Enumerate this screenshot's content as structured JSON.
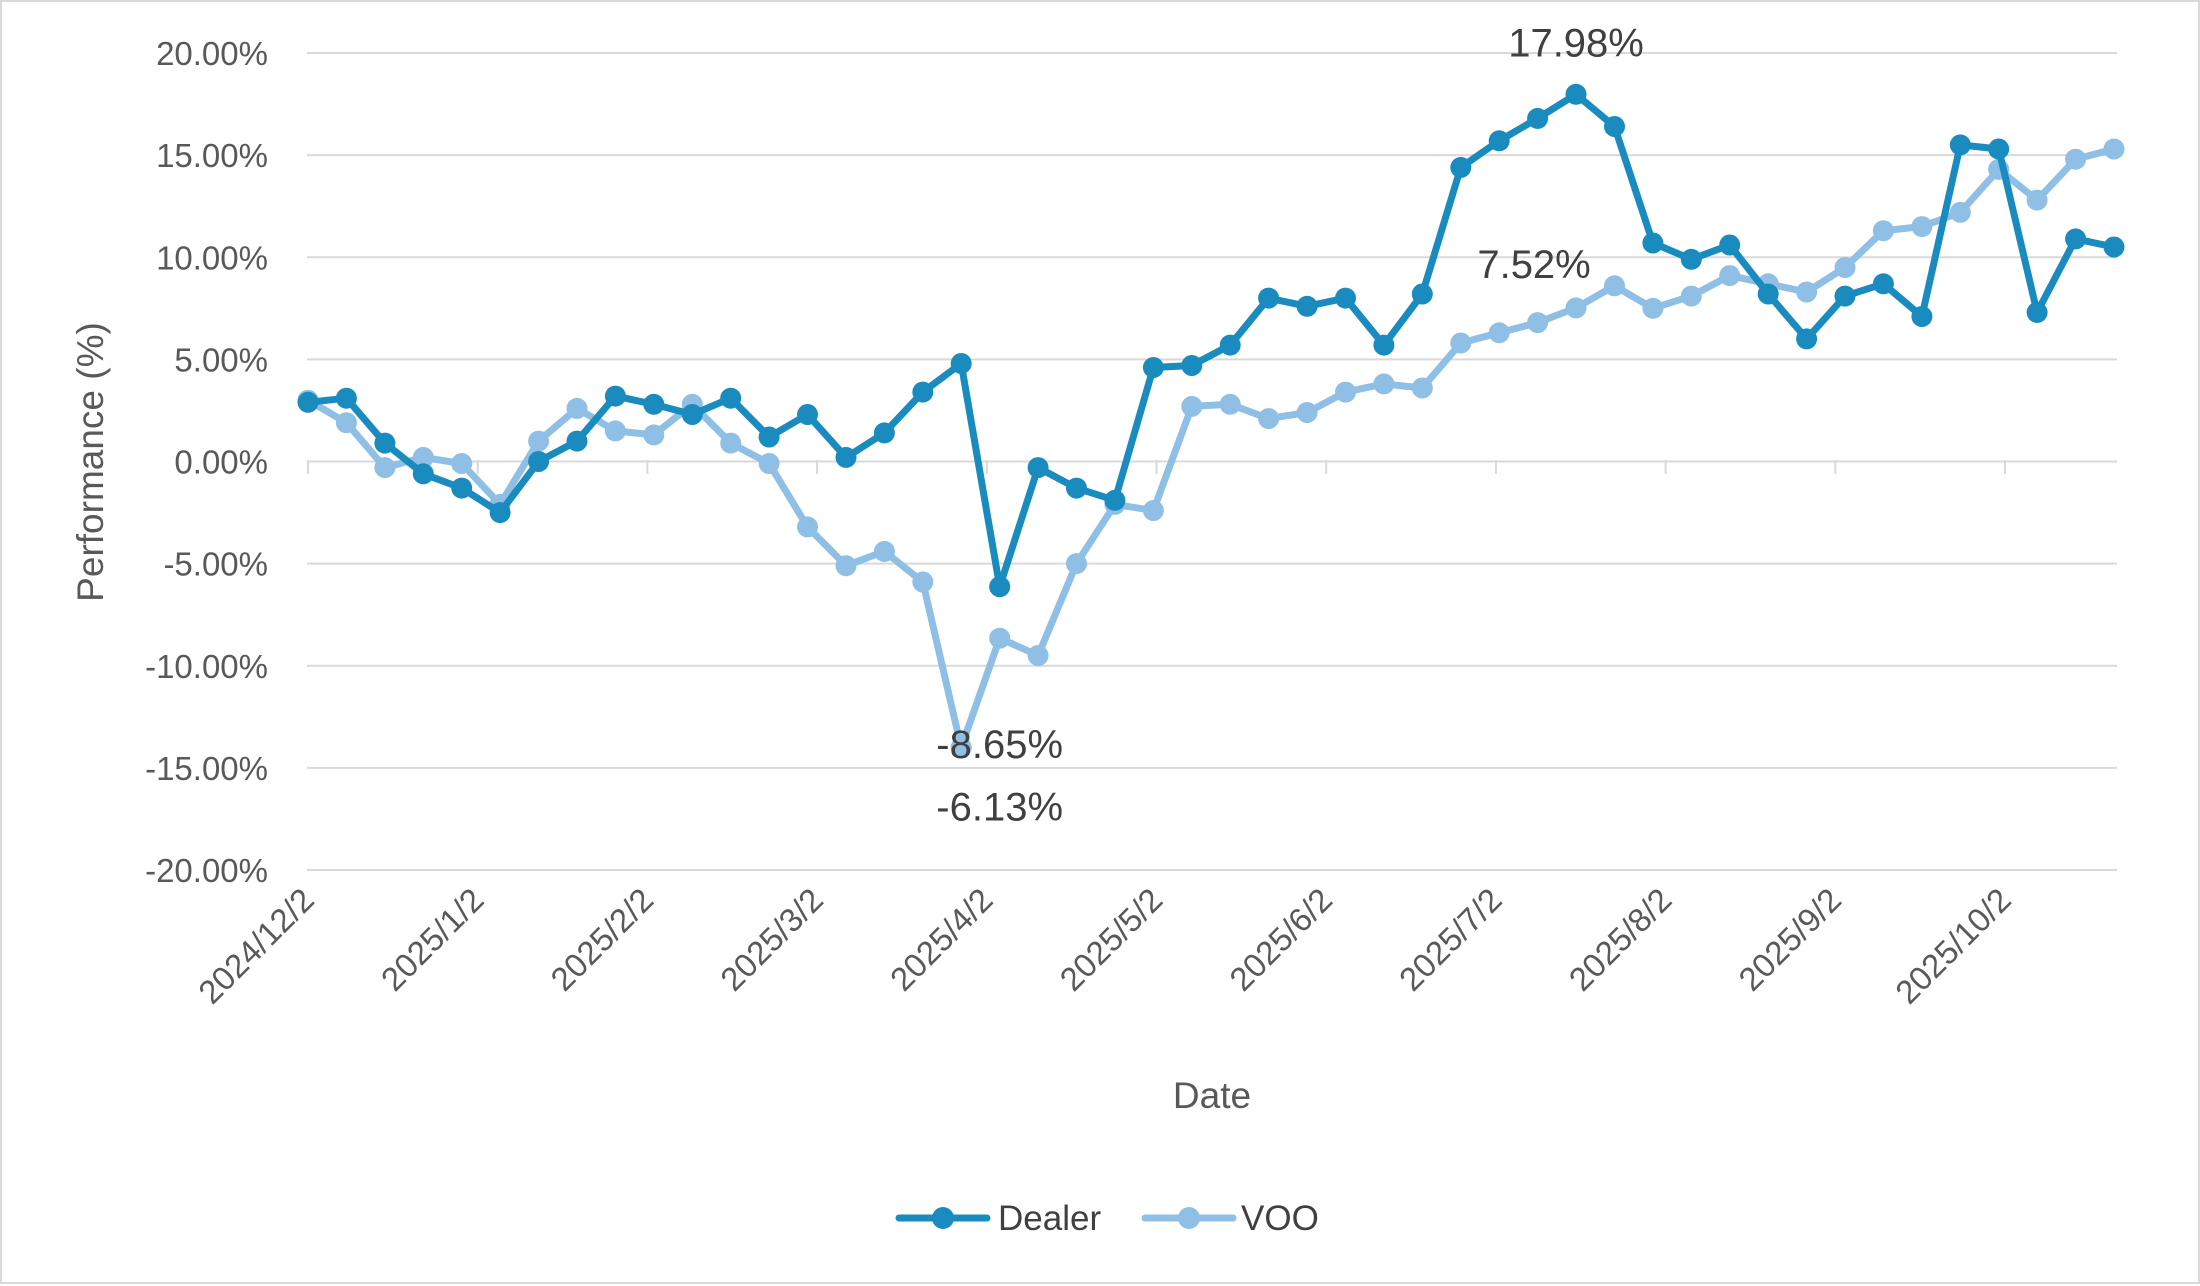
{
  "chart_data": {
    "type": "line",
    "title": "",
    "xlabel": "Date",
    "ylabel": "Performance (%)",
    "ylim": [
      -20,
      20
    ],
    "ytick_step": 5,
    "y_tick_labels": [
      "20.00%",
      "15.00%",
      "10.00%",
      "5.00%",
      "0.00%",
      "-5.00%",
      "-10.00%",
      "-15.00%",
      "-20.00%"
    ],
    "x_tick_labels": [
      "2024/12/2",
      "2025/1/2",
      "2025/2/2",
      "2025/3/2",
      "2025/4/2",
      "2025/5/2",
      "2025/6/2",
      "2025/7/2",
      "2025/8/2",
      "2025/9/2",
      "2025/10/2"
    ],
    "grid": true,
    "legend_position": "bottom-center",
    "series": [
      {
        "name": "Dealer",
        "color": "#1a8bbf",
        "values": [
          2.9,
          3.1,
          0.9,
          -0.6,
          -1.3,
          -2.5,
          0.0,
          1.0,
          3.2,
          2.8,
          2.3,
          3.1,
          1.2,
          2.3,
          0.2,
          1.4,
          3.4,
          4.8,
          -6.13,
          -0.3,
          -1.3,
          -1.9,
          4.6,
          4.7,
          5.7,
          8.0,
          7.6,
          8.0,
          5.7,
          8.2,
          14.4,
          15.7,
          16.8,
          17.98,
          16.4,
          10.7,
          9.9,
          10.6,
          8.2,
          6.0,
          8.1,
          8.7,
          7.1,
          15.5,
          15.3,
          7.3,
          10.9,
          10.5
        ]
      },
      {
        "name": "VOO",
        "color": "#8fbfe4",
        "values": [
          3.0,
          1.9,
          -0.3,
          0.2,
          -0.1,
          -2.1,
          1.0,
          2.6,
          1.5,
          1.3,
          2.8,
          0.9,
          -0.1,
          -3.2,
          -5.1,
          -4.4,
          -5.9,
          -14.0,
          -8.65,
          -9.5,
          -5.0,
          -2.1,
          -2.4,
          2.7,
          2.8,
          2.1,
          2.4,
          3.4,
          3.8,
          3.6,
          5.8,
          6.3,
          6.8,
          7.52,
          8.6,
          7.5,
          8.1,
          9.1,
          8.7,
          8.3,
          9.5,
          11.3,
          11.5,
          12.2,
          14.3,
          12.8,
          14.8,
          15.3
        ]
      }
    ],
    "annotations": [
      {
        "label": "17.98%",
        "series": 0,
        "index": 33
      },
      {
        "label": "7.52%",
        "series": 1,
        "index": 33
      },
      {
        "label": "-6.13%",
        "series": 0,
        "index": 18
      },
      {
        "label": "-8.65%",
        "series": 1,
        "index": 18
      }
    ]
  }
}
